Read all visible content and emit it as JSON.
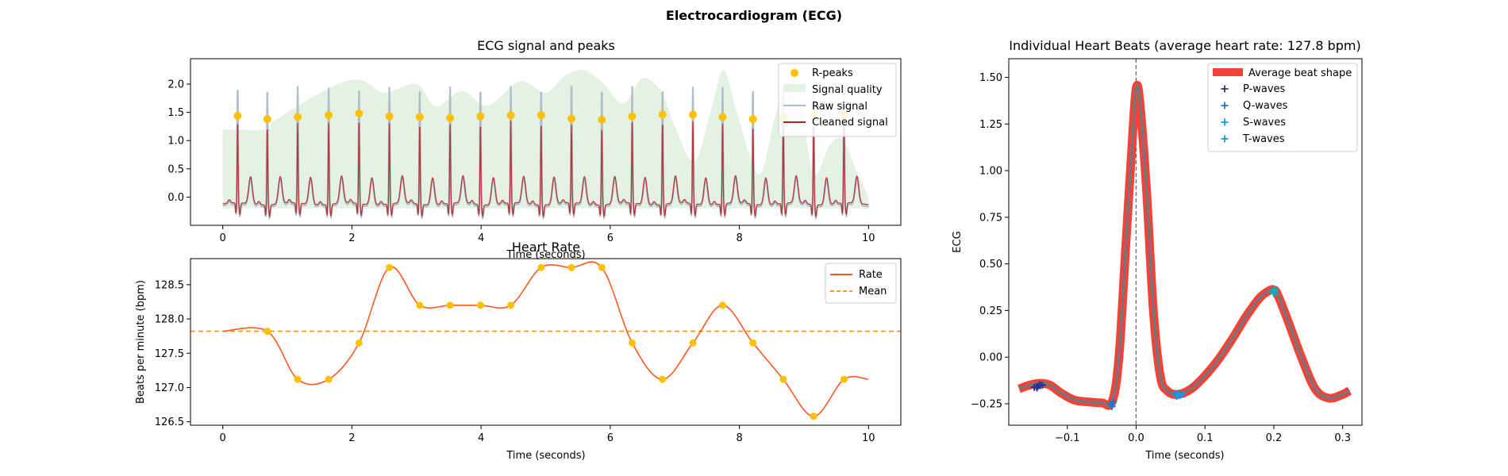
{
  "figure": {
    "suptitle": "Electrocardiogram (ECG)"
  },
  "colors": {
    "r_peaks": "#FFC000",
    "quality_fill": "#E3F2E3",
    "raw_signal": "#B0BCC8",
    "cleaned_signal": "#B22222",
    "rate": "#FF5722",
    "mean": "#FF9800",
    "avg_beat": "#F44336",
    "beat_lines": "#5F7E8E",
    "p_waves": "#283593",
    "q_waves": "#1976D2",
    "s_waves": "#039BE5",
    "t_waves": "#00ACC1"
  },
  "chart_data": [
    {
      "id": "ecg_signal",
      "type": "line",
      "title": "ECG signal and peaks",
      "xlabel": "Time (seconds)",
      "ylabel": "",
      "xlim": [
        -0.5,
        10.5
      ],
      "ylim": [
        -0.5,
        2.45
      ],
      "xticks": [
        0,
        2,
        4,
        6,
        8,
        10
      ],
      "yticks": [
        0.0,
        0.5,
        1.0,
        1.5,
        2.0
      ],
      "ytick_labels": [
        "0.0",
        "0.5",
        "1.0",
        "1.5",
        "2.0"
      ],
      "legend": [
        "R-peaks",
        "Signal quality",
        "Raw signal",
        "Cleaned signal"
      ],
      "legend_position": "top-right",
      "r_peaks": {
        "x": [
          0.23,
          0.69,
          1.16,
          1.64,
          2.11,
          2.58,
          3.05,
          3.52,
          3.99,
          4.46,
          4.93,
          5.4,
          5.87,
          6.34,
          6.81,
          7.28,
          7.74,
          8.21,
          8.68,
          9.15,
          9.62
        ],
        "y": [
          1.44,
          1.38,
          1.42,
          1.45,
          1.48,
          1.43,
          1.42,
          1.4,
          1.43,
          1.45,
          1.45,
          1.39,
          1.37,
          1.43,
          1.46,
          1.46,
          1.42,
          1.38,
          1.4,
          1.44,
          1.45
        ]
      },
      "quality": {
        "x": [
          0.0,
          0.7,
          0.8,
          1.6,
          2.1,
          2.5,
          3.0,
          3.3,
          3.7,
          4.1,
          4.6,
          5.0,
          5.3,
          5.6,
          5.9,
          6.2,
          6.5,
          6.8,
          7.0,
          7.3,
          7.55,
          7.75,
          7.95,
          8.3,
          8.55,
          8.75,
          8.95,
          9.15,
          9.4,
          9.6,
          9.8,
          10.0
        ],
        "y": [
          1.2,
          1.2,
          1.35,
          1.9,
          2.08,
          1.85,
          2.0,
          1.6,
          1.88,
          1.62,
          2.05,
          1.85,
          2.15,
          2.25,
          2.0,
          1.65,
          2.1,
          1.85,
          1.25,
          0.62,
          1.5,
          2.25,
          1.55,
          0.4,
          1.42,
          2.05,
          1.65,
          0.4,
          0.92,
          1.02,
          0.5,
          0.0
        ]
      },
      "raw_peak_height": 2.1,
      "cleaned_signal_note": "periodic beats with R peaks at r_peaks and T waves ~0.2 s later"
    },
    {
      "id": "heart_rate",
      "type": "line",
      "title": "Heart Rate",
      "xlabel": "Time (seconds)",
      "ylabel": "Beats per minute (bpm)",
      "xlim": [
        -0.5,
        10.5
      ],
      "ylim": [
        126.45,
        128.88
      ],
      "xticks": [
        0,
        2,
        4,
        6,
        8,
        10
      ],
      "yticks": [
        126.5,
        127.0,
        127.5,
        128.0,
        128.5
      ],
      "ytick_labels": [
        "126.5",
        "127.0",
        "127.5",
        "128.0",
        "128.5"
      ],
      "legend": [
        "Rate",
        "Mean"
      ],
      "legend_position": "top-right",
      "mean": 127.82,
      "rate": {
        "x": [
          0.0,
          0.69,
          1.16,
          1.64,
          2.11,
          2.58,
          3.05,
          3.52,
          3.99,
          4.46,
          4.93,
          5.4,
          5.87,
          6.34,
          6.81,
          7.28,
          7.74,
          8.21,
          8.68,
          9.15,
          9.62,
          10.0
        ],
        "y": [
          127.82,
          127.82,
          127.12,
          127.12,
          127.65,
          128.75,
          128.2,
          128.2,
          128.2,
          128.2,
          128.75,
          128.75,
          128.75,
          127.65,
          127.12,
          127.65,
          128.2,
          127.65,
          127.12,
          126.58,
          127.12,
          127.12
        ]
      },
      "points_x": [
        0.69,
        1.16,
        1.64,
        2.11,
        2.58,
        3.05,
        3.52,
        3.99,
        4.46,
        4.93,
        5.4,
        5.87,
        6.34,
        6.81,
        7.28,
        7.74,
        8.21,
        8.68,
        9.15,
        9.62
      ]
    },
    {
      "id": "heart_beats",
      "type": "line",
      "title": "Individual Heart Beats (average heart rate: 127.8 bpm)",
      "xlabel": "Time (seconds)",
      "ylabel": "ECG",
      "xlim": [
        -0.185,
        0.328
      ],
      "ylim": [
        -0.365,
        1.6
      ],
      "xticks": [
        -0.1,
        0.0,
        0.1,
        0.2,
        0.3
      ],
      "xtick_labels": [
        "−0.1",
        "0.0",
        "0.1",
        "0.2",
        "0.3"
      ],
      "yticks": [
        -0.25,
        0.0,
        0.25,
        0.5,
        0.75,
        1.0,
        1.25,
        1.5
      ],
      "ytick_labels": [
        "−0.25",
        "0.00",
        "0.25",
        "0.50",
        "0.75",
        "1.00",
        "1.25",
        "1.50"
      ],
      "legend": [
        "Average beat shape",
        "P-waves",
        "Q-waves",
        "S-waves",
        "T-waves"
      ],
      "legend_position": "top-right",
      "vline_x": 0.0,
      "avg_beat": {
        "x": [
          -0.17,
          -0.155,
          -0.14,
          -0.125,
          -0.11,
          -0.09,
          -0.07,
          -0.05,
          -0.035,
          -0.025,
          -0.015,
          -0.005,
          0.0,
          0.005,
          0.015,
          0.025,
          0.035,
          0.045,
          0.06,
          0.08,
          0.1,
          0.12,
          0.14,
          0.16,
          0.18,
          0.195,
          0.2,
          0.205,
          0.22,
          0.24,
          0.26,
          0.28,
          0.3,
          0.31
        ],
        "y": [
          -0.17,
          -0.15,
          -0.14,
          -0.15,
          -0.19,
          -0.23,
          -0.24,
          -0.245,
          -0.24,
          0.0,
          0.6,
          1.2,
          1.44,
          1.38,
          0.9,
          0.25,
          -0.1,
          -0.18,
          -0.2,
          -0.17,
          -0.1,
          -0.01,
          0.1,
          0.22,
          0.32,
          0.36,
          0.36,
          0.34,
          0.2,
          0.0,
          -0.17,
          -0.22,
          -0.2,
          -0.18
        ]
      },
      "p_waves": {
        "x": [
          -0.148,
          -0.145,
          -0.142,
          -0.139,
          -0.136,
          -0.144,
          -0.14
        ],
        "y": [
          -0.162,
          -0.158,
          -0.155,
          -0.152,
          -0.15,
          -0.165,
          -0.147
        ]
      },
      "q_waves": {
        "x": [
          -0.037,
          -0.035,
          -0.033
        ],
        "y": [
          -0.25,
          -0.265,
          -0.24
        ]
      },
      "s_waves": {
        "x": [
          0.057,
          0.06,
          0.063,
          0.066,
          0.059
        ],
        "y": [
          -0.195,
          -0.2,
          -0.205,
          -0.2,
          -0.21
        ]
      },
      "t_waves": {
        "x": [
          0.199,
          0.2,
          0.201,
          0.2,
          0.202
        ],
        "y": [
          0.35,
          0.36,
          0.365,
          0.34,
          0.355
        ]
      }
    }
  ]
}
